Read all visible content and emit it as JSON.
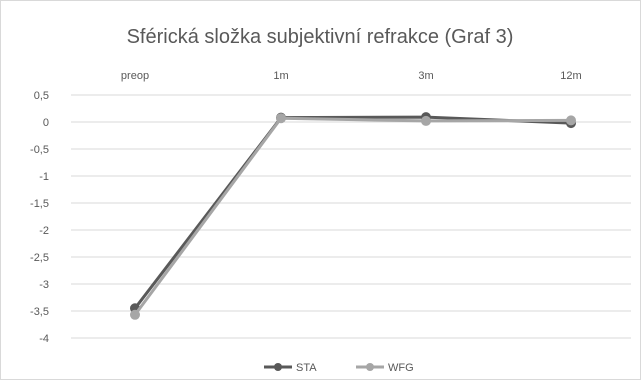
{
  "chart_data": {
    "type": "line",
    "title": "Sférická složka subjektivní refrakce (Graf 3)",
    "categories": [
      "preop",
      "1m",
      "3m",
      "12m"
    ],
    "ylim": [
      -4,
      0.5
    ],
    "yticks": [
      "0,5",
      "0",
      "-0,5",
      "-1",
      "-1,5",
      "-2",
      "-2,5",
      "-3",
      "-3,5",
      "-4"
    ],
    "grid": "horizontal",
    "legend": "bottom",
    "series": [
      {
        "name": "STA",
        "values": [
          -3.45,
          0.08,
          0.09,
          -0.02
        ],
        "color": "#595959"
      },
      {
        "name": "WFG",
        "values": [
          -3.57,
          0.07,
          0.02,
          0.03
        ],
        "color": "#a6a6a6"
      }
    ]
  }
}
